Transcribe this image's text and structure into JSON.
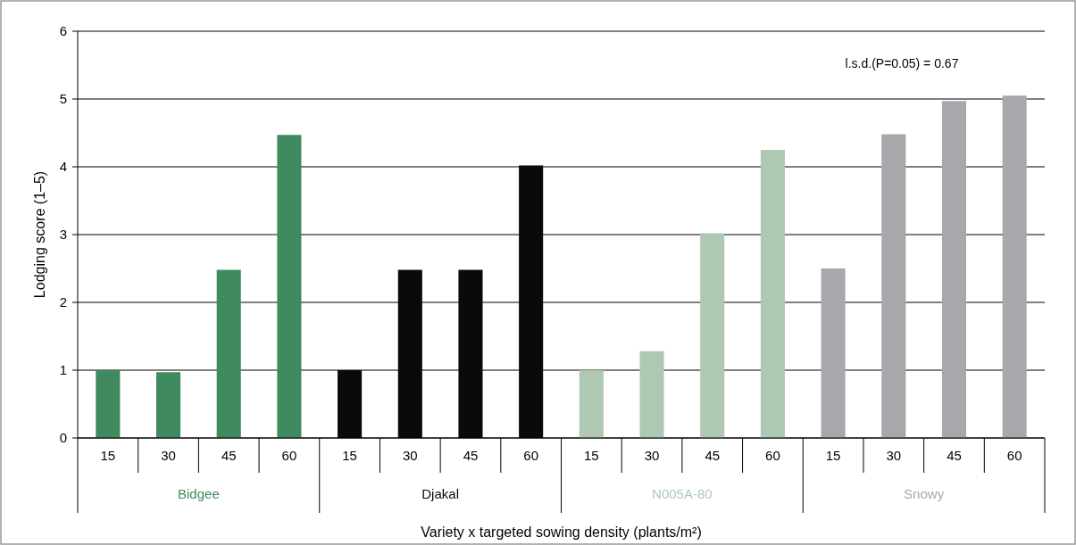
{
  "chart_data": {
    "type": "bar",
    "xlabel": "Variety x targeted sowing density (plants/m²)",
    "ylabel": "Lodging score (1–5)",
    "categories": [
      "15",
      "30",
      "45",
      "60",
      "15",
      "30",
      "45",
      "60",
      "15",
      "30",
      "45",
      "60",
      "15",
      "30",
      "45",
      "60"
    ],
    "series": [
      {
        "name": "Bidgee",
        "color": "#3f8a5e",
        "values": [
          1,
          0.97,
          2.48,
          4.47,
          null,
          null,
          null,
          null,
          null,
          null,
          null,
          null,
          null,
          null,
          null,
          null
        ]
      },
      {
        "name": "Djakal",
        "color": "#0a0a0a",
        "values": [
          null,
          null,
          null,
          null,
          1,
          2.48,
          2.48,
          4.02,
          null,
          null,
          null,
          null,
          null,
          null,
          null,
          null
        ]
      },
      {
        "name": "N005A-80",
        "color": "#afc8b3",
        "values": [
          null,
          null,
          null,
          null,
          null,
          null,
          null,
          null,
          1,
          1.28,
          3.02,
          4.25,
          null,
          null,
          null,
          null
        ]
      },
      {
        "name": "Snowy",
        "color": "#a7a8ac",
        "values": [
          null,
          null,
          null,
          null,
          null,
          null,
          null,
          null,
          null,
          null,
          null,
          null,
          2.5,
          4.48,
          4.97,
          5.05
        ]
      }
    ],
    "ylim": [
      0,
      6
    ],
    "yticks": [
      0,
      1,
      2,
      3,
      4,
      5,
      6
    ],
    "grid": "y",
    "legend": false,
    "annotations": [
      "l.s.d.(P=0.05) = 0.67"
    ]
  }
}
